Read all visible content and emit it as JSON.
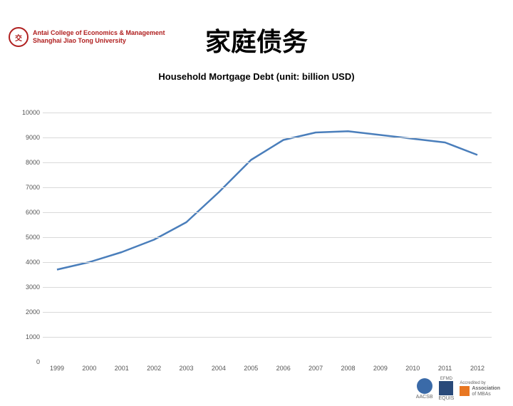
{
  "header": {
    "institution_line1": "Antai College of Economics & Management",
    "institution_line2": "Shanghai Jiao Tong University",
    "seal_glyph": "交"
  },
  "title": "家庭债务",
  "subtitle": "Household Mortgage Debt (unit: billion USD)",
  "chart": {
    "type": "line",
    "x_values": [
      "1999",
      "2000",
      "2001",
      "2002",
      "2003",
      "2004",
      "2005",
      "2006",
      "2007",
      "2008",
      "2009",
      "2010",
      "2011",
      "2012"
    ],
    "y_values": [
      3700,
      4000,
      4400,
      4900,
      5600,
      6800,
      8100,
      8900,
      9200,
      9250,
      9100,
      8950,
      8800,
      8300
    ],
    "ylim": [
      0,
      10000
    ],
    "ytick_step": 1000,
    "line_color": "#4a7ebb",
    "line_width": 2.5,
    "grid_color": "#d9d9d9",
    "background_color": "#ffffff",
    "label_fontsize": 9,
    "label_color": "#555555"
  },
  "footer": {
    "accred1": {
      "label": "AACSB",
      "color": "#3a6aa8"
    },
    "accred2": {
      "label": "EQUIS",
      "sub": "EFMD",
      "color": "#2a4a7a"
    },
    "accred3": {
      "label1": "Accredited by",
      "label2": "Association",
      "label3": "of MBAs",
      "color": "#e87722"
    }
  }
}
